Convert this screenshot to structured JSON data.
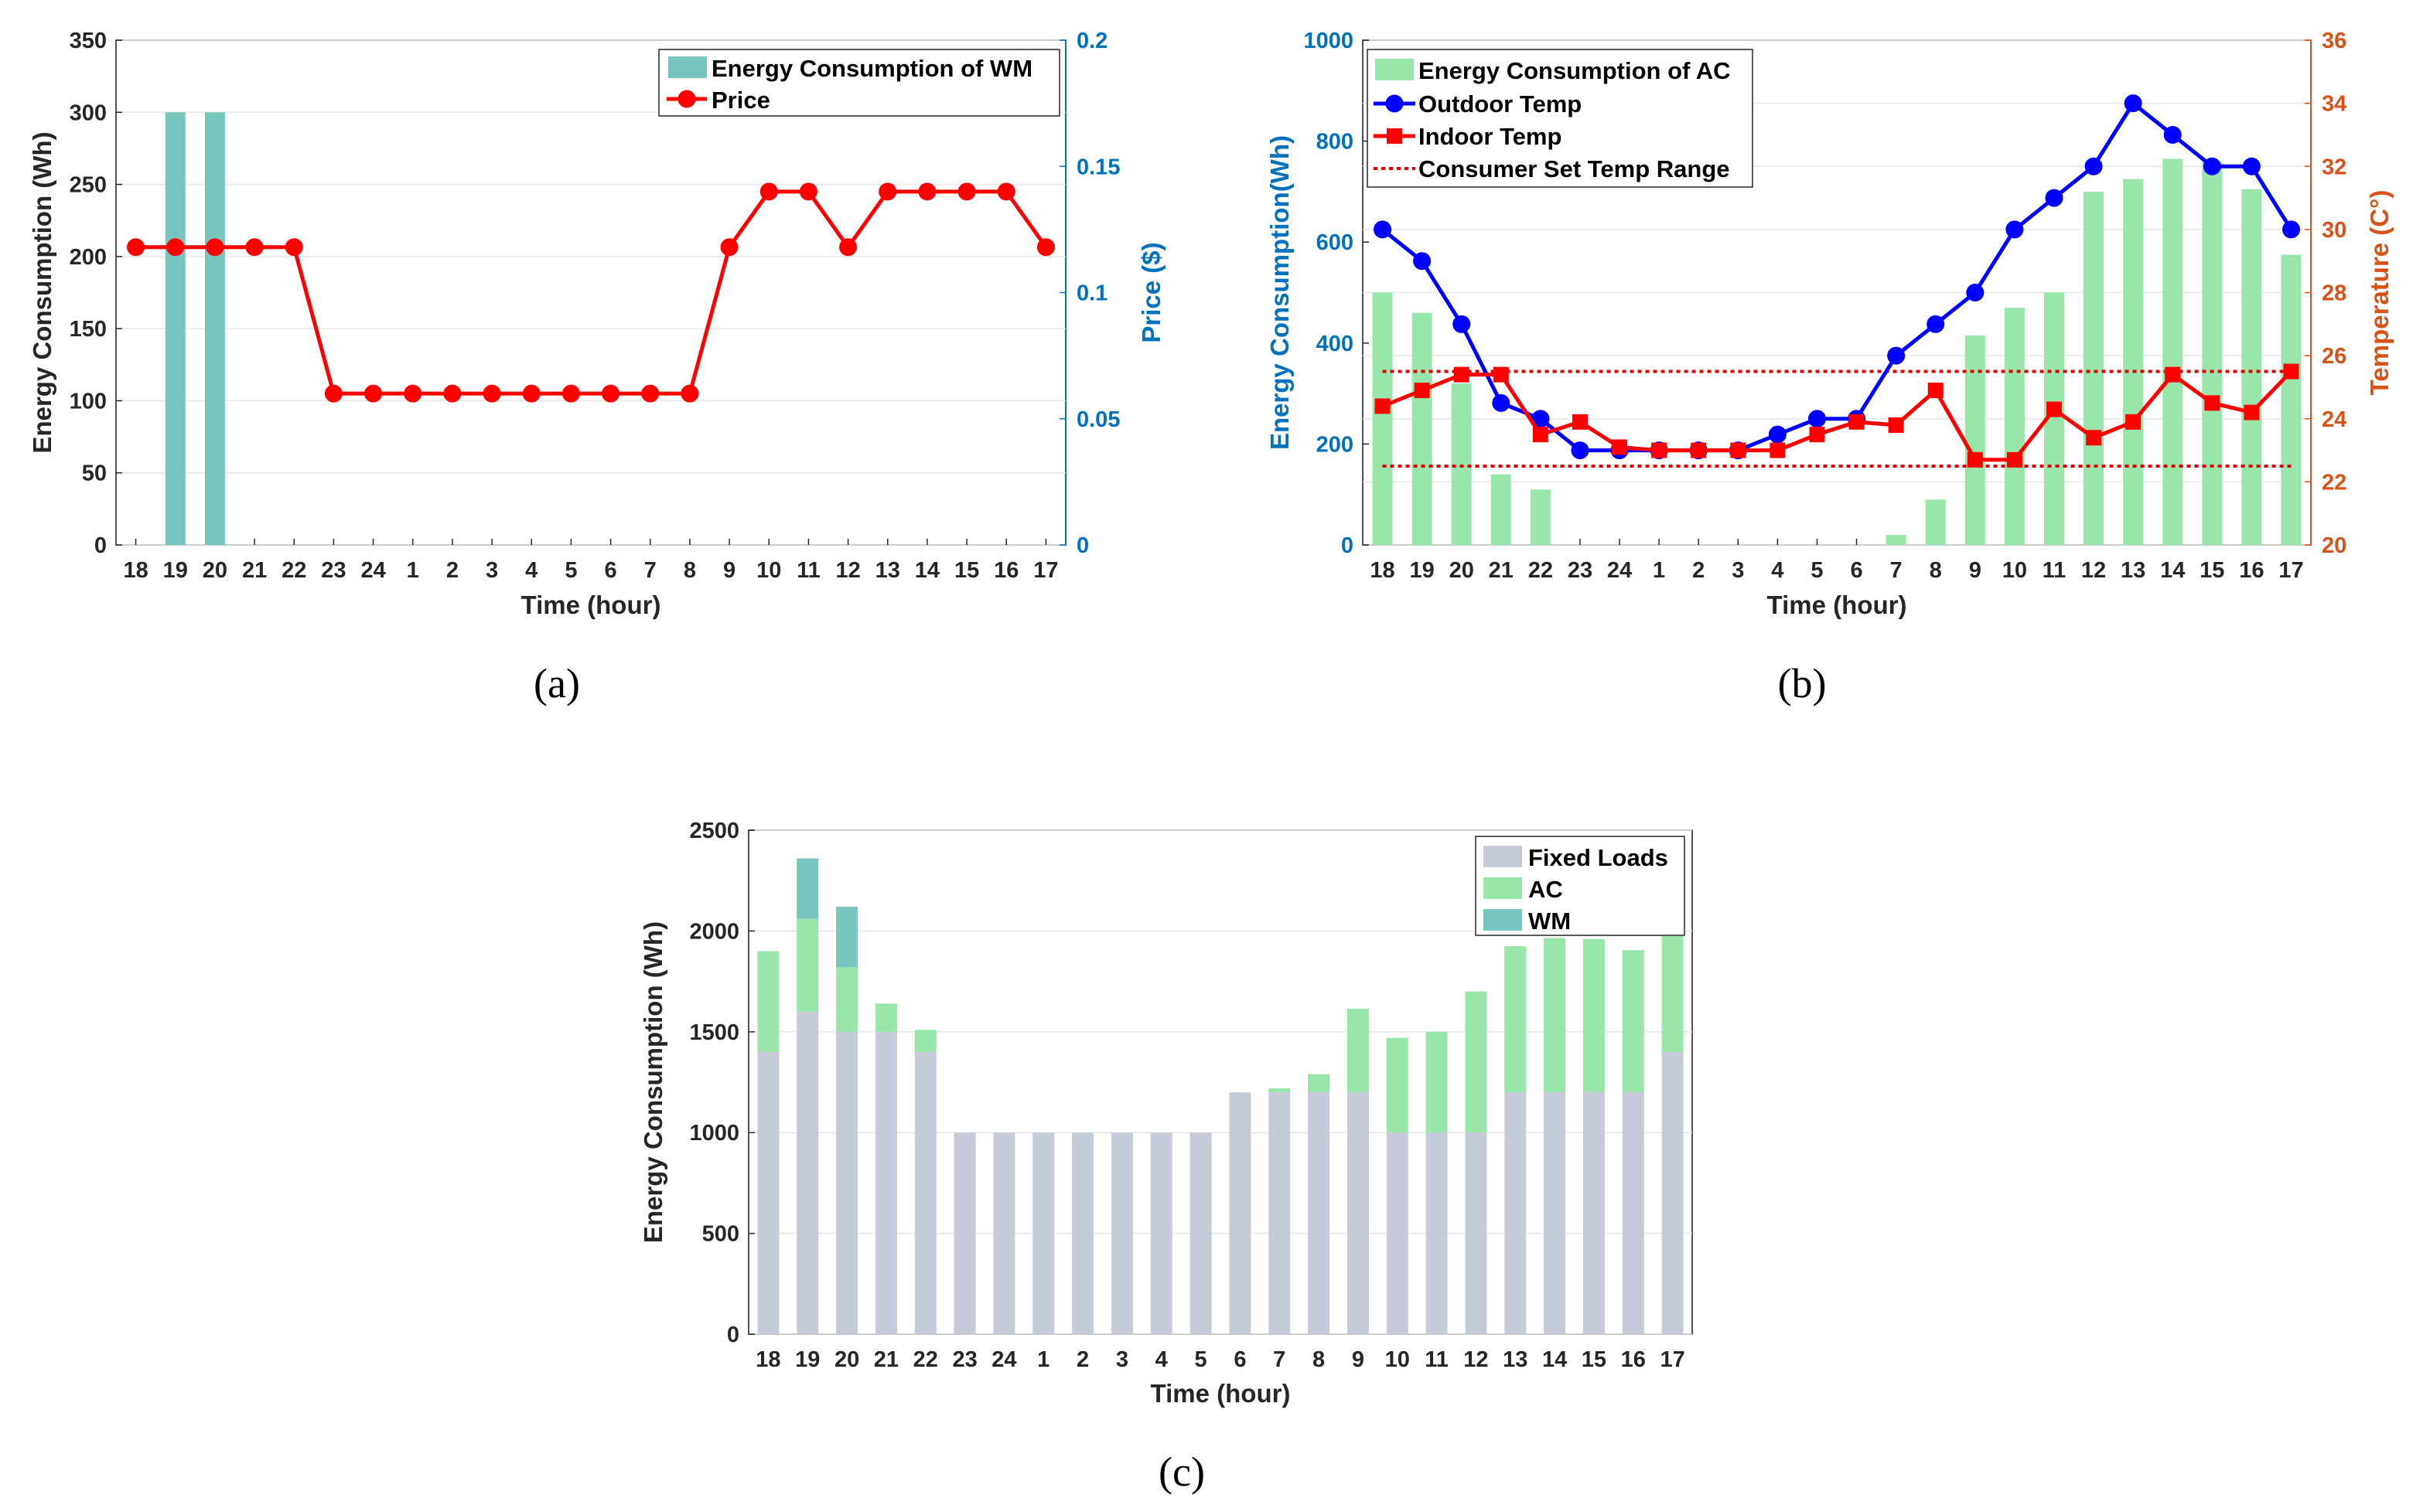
{
  "captions": {
    "a": "(a)",
    "b": "(b)",
    "c": "(c)"
  },
  "chart_data": [
    {
      "id": "a",
      "type": "bar+line",
      "categories": [
        "18",
        "19",
        "20",
        "21",
        "22",
        "23",
        "24",
        "1",
        "2",
        "3",
        "4",
        "5",
        "6",
        "7",
        "8",
        "9",
        "10",
        "11",
        "12",
        "13",
        "14",
        "15",
        "16",
        "17"
      ],
      "xlabel": "Time (hour)",
      "ylabel_left": "Energy Consumption (Wh)",
      "ylabel_right": "Price ($)",
      "ylim_left": [
        0,
        350
      ],
      "yticks_left": [
        0,
        50,
        100,
        150,
        200,
        250,
        300,
        350
      ],
      "ylim_right": [
        0,
        0.2
      ],
      "yticks_right": [
        0,
        0.05,
        0.1,
        0.15,
        0.2
      ],
      "ytick_labels_right": [
        "0",
        "0.05",
        "0.1",
        "0.15",
        "0.2"
      ],
      "grid": true,
      "legend_position": "top-right",
      "series": [
        {
          "name": "Energy Consumption of WM",
          "kind": "bar",
          "axis": "left",
          "color": "#77c5bc",
          "values": [
            0,
            300,
            300,
            0,
            0,
            0,
            0,
            0,
            0,
            0,
            0,
            0,
            0,
            0,
            0,
            0,
            0,
            0,
            0,
            0,
            0,
            0,
            0,
            0
          ]
        },
        {
          "name": "Price",
          "kind": "line",
          "axis": "right",
          "color": "#ff0000",
          "marker": "circle",
          "values": [
            0.118,
            0.118,
            0.118,
            0.118,
            0.118,
            0.06,
            0.06,
            0.06,
            0.06,
            0.06,
            0.06,
            0.06,
            0.06,
            0.06,
            0.06,
            0.118,
            0.14,
            0.14,
            0.118,
            0.14,
            0.14,
            0.14,
            0.14,
            0.118
          ]
        }
      ]
    },
    {
      "id": "b",
      "type": "bar+line",
      "categories": [
        "18",
        "19",
        "20",
        "21",
        "22",
        "23",
        "24",
        "1",
        "2",
        "3",
        "4",
        "5",
        "6",
        "7",
        "8",
        "9",
        "10",
        "11",
        "12",
        "13",
        "14",
        "15",
        "16",
        "17"
      ],
      "xlabel": "Time (hour)",
      "ylabel_left": "Energy Consumption(Wh)",
      "ylabel_right": "Temperature (C°)",
      "ylim_left": [
        0,
        1000
      ],
      "yticks_left": [
        0,
        200,
        400,
        600,
        800,
        1000
      ],
      "ylim_right": [
        20,
        36
      ],
      "yticks_right": [
        20,
        22,
        24,
        26,
        28,
        30,
        32,
        34,
        36
      ],
      "grid": true,
      "legend_position": "top-left",
      "series": [
        {
          "name": "Energy Consumption of AC",
          "kind": "bar",
          "axis": "left",
          "color": "#99e6ab",
          "values": [
            500,
            460,
            320,
            140,
            110,
            0,
            0,
            0,
            0,
            0,
            0,
            0,
            0,
            20,
            90,
            415,
            470,
            500,
            700,
            725,
            765,
            760,
            705,
            575
          ]
        },
        {
          "name": "Outdoor Temp",
          "kind": "line",
          "axis": "right",
          "color": "#0000ff",
          "marker": "circle",
          "values": [
            30,
            29,
            27,
            24.5,
            24,
            23,
            23,
            23,
            23,
            23,
            23.5,
            24,
            24,
            26,
            27,
            28,
            30,
            31,
            32,
            34,
            33,
            32,
            32,
            30
          ]
        },
        {
          "name": "Indoor Temp",
          "kind": "line",
          "axis": "right",
          "color": "#ff0000",
          "marker": "square",
          "values": [
            24.4,
            24.9,
            25.4,
            25.4,
            23.5,
            23.9,
            23.1,
            23,
            23,
            23,
            23,
            23.5,
            23.9,
            23.8,
            24.9,
            22.7,
            22.7,
            24.3,
            23.4,
            23.9,
            25.4,
            24.5,
            24.2,
            25.5
          ]
        },
        {
          "name": "Consumer Set Temp Range",
          "kind": "dotted-range",
          "axis": "right",
          "color": "#e00000",
          "lower": 22.5,
          "upper": 25.5
        }
      ]
    },
    {
      "id": "c",
      "type": "stacked-bar",
      "categories": [
        "18",
        "19",
        "20",
        "21",
        "22",
        "23",
        "24",
        "1",
        "2",
        "3",
        "4",
        "5",
        "6",
        "7",
        "8",
        "9",
        "10",
        "11",
        "12",
        "13",
        "14",
        "15",
        "16",
        "17"
      ],
      "xlabel": "Time (hour)",
      "ylabel": "Energy Consumption (Wh)",
      "ylim": [
        0,
        2500
      ],
      "yticks": [
        0,
        500,
        1000,
        1500,
        2000,
        2500
      ],
      "grid": true,
      "legend_position": "top-right",
      "series": [
        {
          "name": "Fixed Loads",
          "color": "#c5cbd8",
          "values": [
            1400,
            1600,
            1500,
            1500,
            1400,
            1000,
            1000,
            1000,
            1000,
            1000,
            1000,
            1000,
            1200,
            1200,
            1200,
            1200,
            1000,
            1000,
            1000,
            1200,
            1200,
            1200,
            1200,
            1400
          ]
        },
        {
          "name": "AC",
          "color": "#99e6ab",
          "values": [
            500,
            460,
            320,
            140,
            110,
            0,
            0,
            0,
            0,
            0,
            0,
            0,
            0,
            20,
            90,
            415,
            470,
            500,
            700,
            725,
            765,
            760,
            705,
            575
          ]
        },
        {
          "name": "WM",
          "color": "#77c5bc",
          "values": [
            0,
            300,
            300,
            0,
            0,
            0,
            0,
            0,
            0,
            0,
            0,
            0,
            0,
            0,
            0,
            0,
            0,
            0,
            0,
            0,
            0,
            0,
            0,
            0
          ]
        }
      ]
    }
  ]
}
